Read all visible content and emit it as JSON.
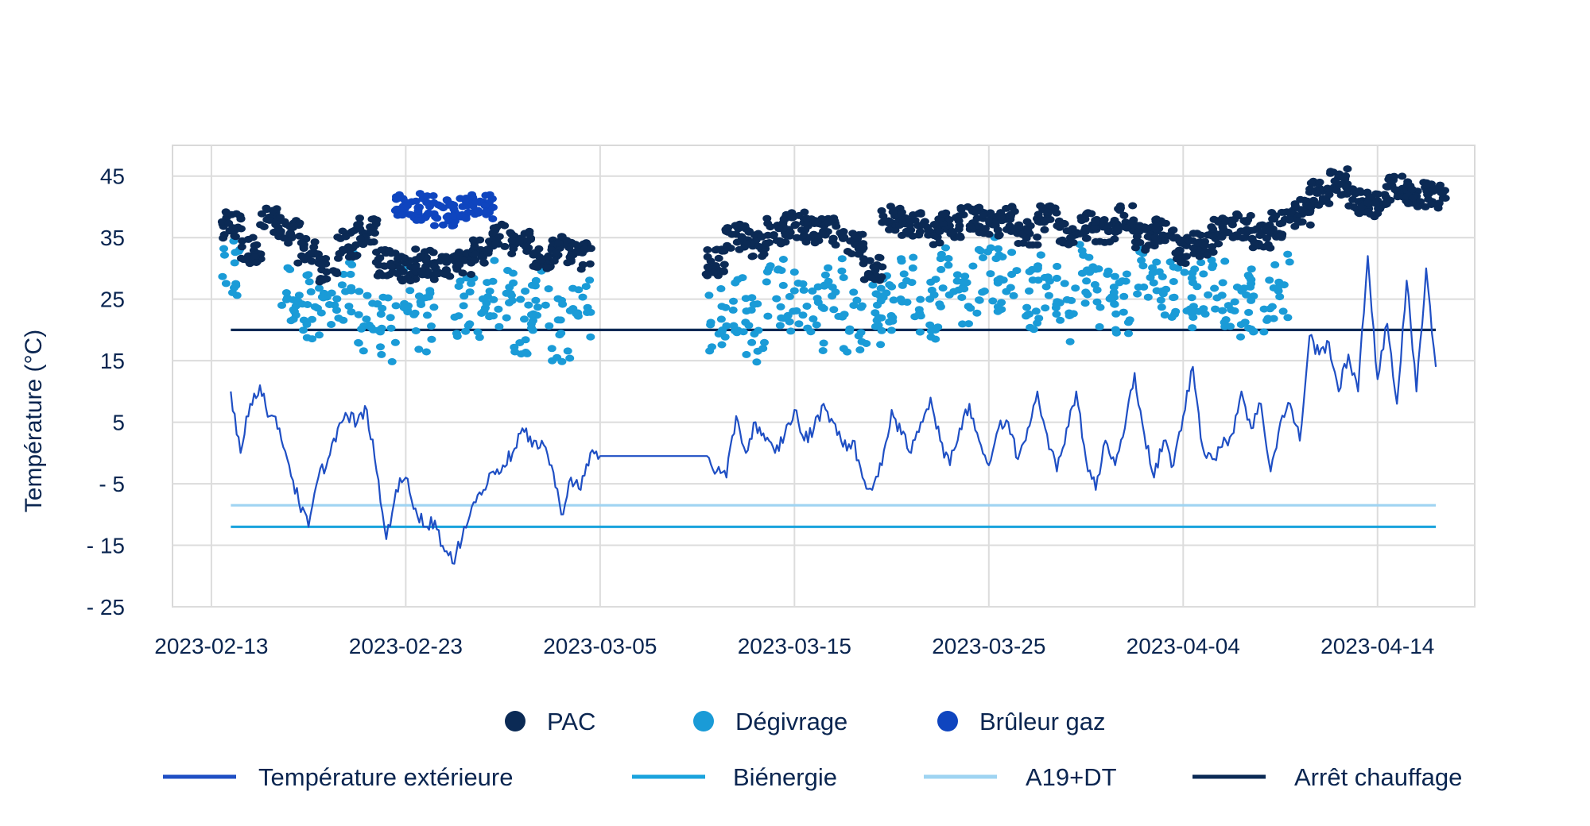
{
  "chart_data": {
    "type": "scatter",
    "title": "",
    "ylabel": "Température (°C)",
    "xlabel": "",
    "x_type": "date",
    "xlim": [
      "2023-02-11",
      "2023-04-19"
    ],
    "ylim": [
      -25,
      50
    ],
    "y_ticks": [
      45,
      35,
      25,
      15,
      5,
      -5,
      -15,
      -25
    ],
    "y_tick_labels": [
      "45",
      "35",
      "25",
      "15",
      "5",
      "- 5",
      "- 15",
      "- 25"
    ],
    "x_ticks": [
      "2023-02-13",
      "2023-02-23",
      "2023-03-05",
      "2023-03-15",
      "2023-03-25",
      "2023-04-04",
      "2023-04-14"
    ],
    "grid": true,
    "legend_position": "bottom",
    "data_gap": [
      "2023-03-05",
      "2023-03-10"
    ],
    "point_series": [
      {
        "name": "PAC",
        "color": "#0b2a55",
        "points": [
          [
            "2023-02-14",
            37
          ],
          [
            "2023-02-15",
            33
          ],
          [
            "2023-02-16",
            38
          ],
          [
            "2023-02-17",
            36
          ],
          [
            "2023-02-18",
            33
          ],
          [
            "2023-02-19",
            30
          ],
          [
            "2023-02-20",
            34
          ],
          [
            "2023-02-21",
            36
          ],
          [
            "2023-02-22",
            31
          ],
          [
            "2023-02-23",
            30
          ],
          [
            "2023-02-24",
            31
          ],
          [
            "2023-02-25",
            30
          ],
          [
            "2023-02-26",
            31
          ],
          [
            "2023-02-27",
            33
          ],
          [
            "2023-02-28",
            35
          ],
          [
            "2023-03-01",
            34
          ],
          [
            "2023-03-02",
            32
          ],
          [
            "2023-03-03",
            33
          ],
          [
            "2023-03-04",
            32
          ],
          [
            "2023-03-11",
            31
          ],
          [
            "2023-03-12",
            35
          ],
          [
            "2023-03-13",
            34
          ],
          [
            "2023-03-14",
            36
          ],
          [
            "2023-03-15",
            37
          ],
          [
            "2023-03-16",
            36
          ],
          [
            "2023-03-17",
            36
          ],
          [
            "2023-03-18",
            34
          ],
          [
            "2023-03-19",
            30
          ],
          [
            "2023-03-20",
            38
          ],
          [
            "2023-03-21",
            37
          ],
          [
            "2023-03-22",
            36
          ],
          [
            "2023-03-23",
            37
          ],
          [
            "2023-03-24",
            38
          ],
          [
            "2023-03-25",
            37
          ],
          [
            "2023-03-26",
            38
          ],
          [
            "2023-03-27",
            36
          ],
          [
            "2023-03-28",
            38
          ],
          [
            "2023-03-29",
            36
          ],
          [
            "2023-03-30",
            37
          ],
          [
            "2023-03-31",
            36
          ],
          [
            "2023-04-01",
            38
          ],
          [
            "2023-04-02",
            35
          ],
          [
            "2023-04-03",
            36
          ],
          [
            "2023-04-04",
            33
          ],
          [
            "2023-04-05",
            34
          ],
          [
            "2023-04-06",
            36
          ],
          [
            "2023-04-07",
            37
          ],
          [
            "2023-04-08",
            35
          ],
          [
            "2023-04-09",
            37
          ],
          [
            "2023-04-10",
            39
          ],
          [
            "2023-04-11",
            42
          ],
          [
            "2023-04-12",
            44
          ],
          [
            "2023-04-13",
            41
          ],
          [
            "2023-04-14",
            40
          ],
          [
            "2023-04-15",
            43
          ],
          [
            "2023-04-16",
            42
          ],
          [
            "2023-04-17",
            42
          ]
        ]
      },
      {
        "name": "Dégivrage",
        "color": "#1a9bd7",
        "points": [
          [
            "2023-02-14",
            29
          ],
          [
            "2023-02-17",
            26
          ],
          [
            "2023-02-18",
            24
          ],
          [
            "2023-02-19",
            22
          ],
          [
            "2023-02-20",
            27
          ],
          [
            "2023-02-21",
            22
          ],
          [
            "2023-02-22",
            20
          ],
          [
            "2023-02-23",
            25
          ],
          [
            "2023-02-24",
            21
          ],
          [
            "2023-02-26",
            24
          ],
          [
            "2023-02-27",
            23
          ],
          [
            "2023-02-28",
            26
          ],
          [
            "2023-03-01",
            21
          ],
          [
            "2023-03-02",
            25
          ],
          [
            "2023-03-03",
            20
          ],
          [
            "2023-03-04",
            23
          ],
          [
            "2023-03-11",
            22
          ],
          [
            "2023-03-12",
            25
          ],
          [
            "2023-03-13",
            20
          ],
          [
            "2023-03-14",
            26
          ],
          [
            "2023-03-15",
            24
          ],
          [
            "2023-03-16",
            22
          ],
          [
            "2023-03-17",
            27
          ],
          [
            "2023-03-18",
            21
          ],
          [
            "2023-03-19",
            23
          ],
          [
            "2023-03-20",
            25
          ],
          [
            "2023-03-21",
            27
          ],
          [
            "2023-03-22",
            24
          ],
          [
            "2023-03-23",
            29
          ],
          [
            "2023-03-24",
            26
          ],
          [
            "2023-03-25",
            30
          ],
          [
            "2023-03-26",
            28
          ],
          [
            "2023-03-27",
            25
          ],
          [
            "2023-03-28",
            27
          ],
          [
            "2023-03-29",
            23
          ],
          [
            "2023-03-30",
            29
          ],
          [
            "2023-03-31",
            26
          ],
          [
            "2023-04-01",
            24
          ],
          [
            "2023-04-02",
            30
          ],
          [
            "2023-04-03",
            27
          ],
          [
            "2023-04-04",
            25
          ],
          [
            "2023-04-05",
            28
          ],
          [
            "2023-04-06",
            26
          ],
          [
            "2023-04-07",
            24
          ],
          [
            "2023-04-08",
            25
          ],
          [
            "2023-04-09",
            27
          ]
        ]
      },
      {
        "name": "Brûleur gaz",
        "color": "#0f45bf",
        "points": [
          [
            "2023-02-23",
            40
          ],
          [
            "2023-02-24",
            40
          ],
          [
            "2023-02-25",
            39
          ],
          [
            "2023-02-26",
            40
          ],
          [
            "2023-02-27",
            40
          ]
        ]
      }
    ],
    "line_series": [
      {
        "name": "Température extérieure",
        "color": "#1f4fc4",
        "points": [
          [
            "2023-02-14",
            10
          ],
          [
            "2023-02-14T12",
            0
          ],
          [
            "2023-02-15",
            8
          ],
          [
            "2023-02-15T12",
            11
          ],
          [
            "2023-02-16",
            6
          ],
          [
            "2023-02-16T12",
            4
          ],
          [
            "2023-02-17",
            -2
          ],
          [
            "2023-02-17T12",
            -8
          ],
          [
            "2023-02-18",
            -12
          ],
          [
            "2023-02-18T12",
            -4
          ],
          [
            "2023-02-19",
            -1
          ],
          [
            "2023-02-19T12",
            4
          ],
          [
            "2023-02-20",
            6
          ],
          [
            "2023-02-20T12",
            5
          ],
          [
            "2023-02-21",
            7
          ],
          [
            "2023-02-21T12",
            -3
          ],
          [
            "2023-02-22",
            -14
          ],
          [
            "2023-02-22T12",
            -6
          ],
          [
            "2023-02-23",
            -4
          ],
          [
            "2023-02-23T12",
            -9
          ],
          [
            "2023-02-24",
            -12
          ],
          [
            "2023-02-24T12",
            -11
          ],
          [
            "2023-02-25",
            -16
          ],
          [
            "2023-02-25T12",
            -18
          ],
          [
            "2023-02-26",
            -12
          ],
          [
            "2023-02-26T12",
            -8
          ],
          [
            "2023-02-27",
            -6
          ],
          [
            "2023-02-27T12",
            -3
          ],
          [
            "2023-02-28",
            -2
          ],
          [
            "2023-02-28T12",
            0
          ],
          [
            "2023-03-01",
            4
          ],
          [
            "2023-03-01T12",
            1
          ],
          [
            "2023-03-02",
            2
          ],
          [
            "2023-03-02T12",
            -2
          ],
          [
            "2023-03-03",
            -10
          ],
          [
            "2023-03-03T12",
            -4
          ],
          [
            "2023-03-04",
            -6
          ],
          [
            "2023-03-04T12",
            0
          ],
          [
            "2023-03-05",
            -0.5
          ],
          [
            "2023-03-10T12",
            -0.5
          ],
          [
            "2023-03-11",
            -3
          ],
          [
            "2023-03-11T12",
            -4
          ],
          [
            "2023-03-12",
            6
          ],
          [
            "2023-03-12T12",
            0
          ],
          [
            "2023-03-13",
            5
          ],
          [
            "2023-03-13T12",
            2
          ],
          [
            "2023-03-14",
            0
          ],
          [
            "2023-03-14T12",
            3
          ],
          [
            "2023-03-15",
            7
          ],
          [
            "2023-03-15T12",
            2
          ],
          [
            "2023-03-16",
            4
          ],
          [
            "2023-03-16T12",
            8
          ],
          [
            "2023-03-17",
            5
          ],
          [
            "2023-03-17T12",
            1
          ],
          [
            "2023-03-18",
            2
          ],
          [
            "2023-03-18T12",
            -4
          ],
          [
            "2023-03-19",
            -6
          ],
          [
            "2023-03-19T12",
            -2
          ],
          [
            "2023-03-20",
            7
          ],
          [
            "2023-03-20T12",
            3
          ],
          [
            "2023-03-21",
            0
          ],
          [
            "2023-03-21T12",
            5
          ],
          [
            "2023-03-22",
            9
          ],
          [
            "2023-03-22T12",
            2
          ],
          [
            "2023-03-23",
            -2
          ],
          [
            "2023-03-23T12",
            4
          ],
          [
            "2023-03-24",
            8
          ],
          [
            "2023-03-24T12",
            2
          ],
          [
            "2023-03-25",
            -2
          ],
          [
            "2023-03-25T12",
            4
          ],
          [
            "2023-03-26",
            5
          ],
          [
            "2023-03-26T12",
            -1
          ],
          [
            "2023-03-27",
            4
          ],
          [
            "2023-03-27T12",
            10
          ],
          [
            "2023-03-28",
            3
          ],
          [
            "2023-03-28T12",
            -3
          ],
          [
            "2023-03-29",
            4
          ],
          [
            "2023-03-29T12",
            10
          ],
          [
            "2023-03-30",
            -1
          ],
          [
            "2023-03-30T12",
            -6
          ],
          [
            "2023-03-31",
            2
          ],
          [
            "2023-03-31T12",
            -2
          ],
          [
            "2023-04-01",
            4
          ],
          [
            "2023-04-01T12",
            13
          ],
          [
            "2023-04-02",
            3
          ],
          [
            "2023-04-02T12",
            -4
          ],
          [
            "2023-04-03",
            2
          ],
          [
            "2023-04-03T12",
            -2
          ],
          [
            "2023-04-04",
            6
          ],
          [
            "2023-04-04T12",
            14
          ],
          [
            "2023-04-05",
            1
          ],
          [
            "2023-04-05T12",
            -1
          ],
          [
            "2023-04-06",
            1
          ],
          [
            "2023-04-06T12",
            3
          ],
          [
            "2023-04-07",
            10
          ],
          [
            "2023-04-07T12",
            4
          ],
          [
            "2023-04-08",
            8
          ],
          [
            "2023-04-08T12",
            -3
          ],
          [
            "2023-04-09",
            5
          ],
          [
            "2023-04-09T12",
            8
          ],
          [
            "2023-04-10",
            2
          ],
          [
            "2023-04-10T12",
            19
          ],
          [
            "2023-04-11",
            16
          ],
          [
            "2023-04-11T12",
            18
          ],
          [
            "2023-04-12",
            10
          ],
          [
            "2023-04-12T12",
            16
          ],
          [
            "2023-04-13",
            10
          ],
          [
            "2023-04-13T12",
            32
          ],
          [
            "2023-04-14",
            12
          ],
          [
            "2023-04-14T12",
            21
          ],
          [
            "2023-04-15",
            8
          ],
          [
            "2023-04-15T12",
            28
          ],
          [
            "2023-04-16",
            10
          ],
          [
            "2023-04-16T12",
            30
          ],
          [
            "2023-04-17",
            14
          ]
        ]
      },
      {
        "name": "Biénergie",
        "color": "#1aa3dd",
        "value": -12,
        "x_range": [
          "2023-02-14",
          "2023-04-17"
        ]
      },
      {
        "name": "A19+DT",
        "color": "#9fd4f2",
        "value": -8.5,
        "x_range": [
          "2023-02-14",
          "2023-04-17"
        ]
      },
      {
        "name": "Arrêt chauffage",
        "color": "#0b2a55",
        "value": 20,
        "x_range": [
          "2023-02-14",
          "2023-04-17"
        ]
      }
    ]
  }
}
